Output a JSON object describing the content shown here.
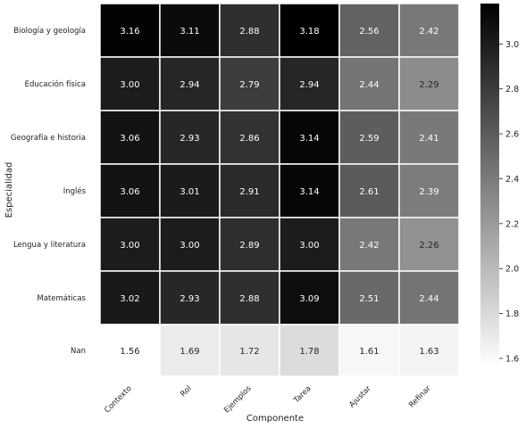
{
  "chart_data": {
    "type": "heatmap",
    "xlabel": "Componente",
    "ylabel": "Especialidad",
    "columns": [
      "Contexto",
      "Rol",
      "Ejemplos",
      "Tarea",
      "Ajustar",
      "Refinar"
    ],
    "rows": [
      "Biología y geología",
      "Educación física",
      "Geografía e historia",
      "Inglés",
      "Lengua y literatura",
      "Matemáticas",
      "Nan"
    ],
    "values": [
      [
        3.16,
        3.11,
        2.88,
        3.18,
        2.56,
        2.42
      ],
      [
        3.0,
        2.94,
        2.79,
        2.94,
        2.44,
        2.29
      ],
      [
        3.06,
        2.93,
        2.86,
        3.14,
        2.59,
        2.41
      ],
      [
        3.06,
        3.01,
        2.91,
        3.14,
        2.61,
        2.39
      ],
      [
        3.0,
        3.0,
        2.89,
        3.0,
        2.42,
        2.26
      ],
      [
        3.02,
        2.93,
        2.88,
        3.09,
        2.51,
        2.44
      ],
      [
        1.56,
        1.69,
        1.72,
        1.78,
        1.61,
        1.63
      ]
    ],
    "colorbar": {
      "vmin": 1.56,
      "vmax": 3.18,
      "ticks": [
        "1.6",
        "1.8",
        "2.0",
        "2.2",
        "2.4",
        "2.6",
        "2.8",
        "3.0"
      ],
      "colormap": "greys",
      "low_color": "#ffffff",
      "high_color": "#000000"
    },
    "grid": false,
    "cell_border_color": "#ffffff"
  }
}
